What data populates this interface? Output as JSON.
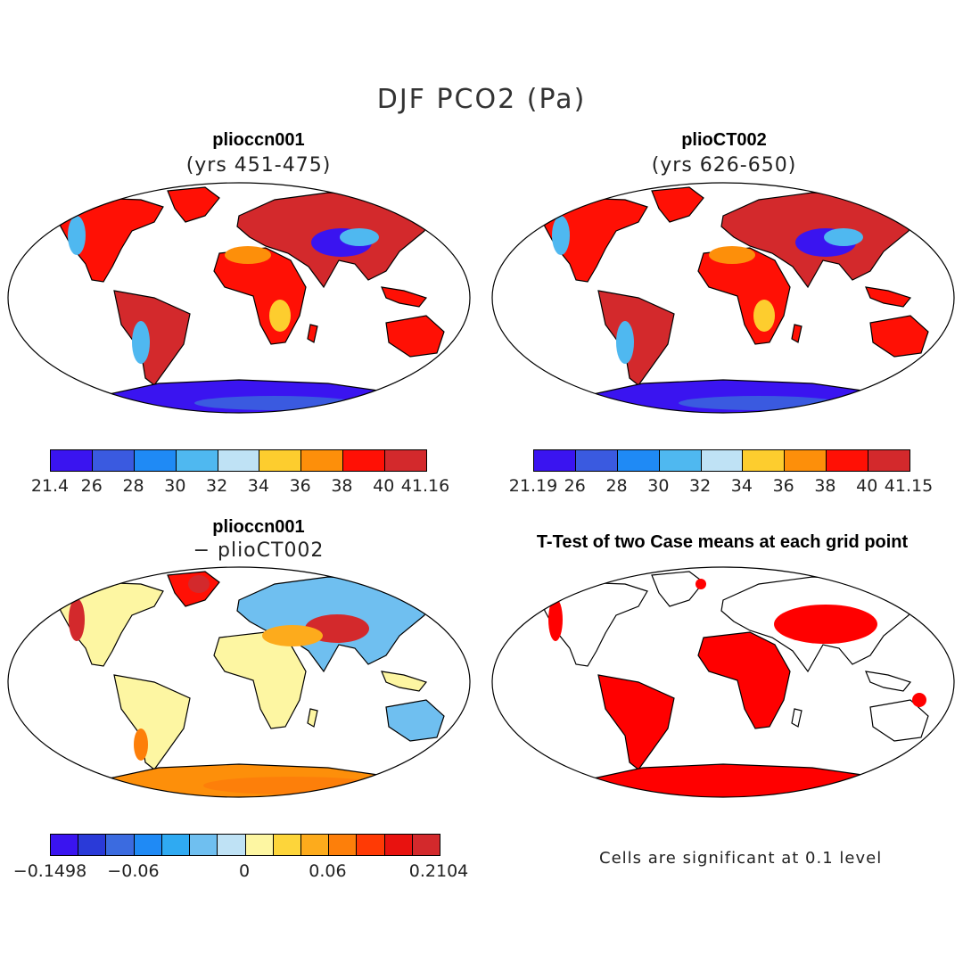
{
  "figure": {
    "title": "DJF PCO2 (Pa)"
  },
  "panels": [
    {
      "title": "plioccn001",
      "subtitle": "(yrs 451-475)"
    },
    {
      "title": "plioCT002",
      "subtitle": "(yrs 626-650)"
    },
    {
      "title": "plioccn001",
      "subtitle": "− plioCT002"
    },
    {
      "title": "T-Test of two Case means at each grid point",
      "subtitle": ""
    }
  ],
  "colorbars": [
    {
      "colors": [
        "#3a14f0",
        "#3a5ae0",
        "#1f8af5",
        "#4fb8f0",
        "#bfe2f5",
        "#fdcd2e",
        "#fd8f0a",
        "#ff1005",
        "#d3292c"
      ],
      "labels": [
        "21.4",
        "26",
        "28",
        "30",
        "32",
        "34",
        "36",
        "38",
        "40",
        "41.16"
      ]
    },
    {
      "colors": [
        "#3a14f0",
        "#3a5ae0",
        "#1f8af5",
        "#4fb8f0",
        "#bfe2f5",
        "#fdcd2e",
        "#fd8f0a",
        "#ff1005",
        "#d3292c"
      ],
      "labels": [
        "21.19",
        "26",
        "28",
        "30",
        "32",
        "34",
        "36",
        "38",
        "40",
        "41.15"
      ]
    },
    {
      "colors": [
        "#3a14f0",
        "#2a3ad8",
        "#3b6be0",
        "#1f8af5",
        "#2faaf2",
        "#6fbff0",
        "#bfe2f5",
        "#fdf6a2",
        "#fdd53a",
        "#fdab1c",
        "#fd7f0a",
        "#ff3a05",
        "#e8120f",
        "#d3292c"
      ],
      "labels": [
        "−0.1498",
        "−0.06",
        "0",
        "0.06",
        "0.2104"
      ]
    }
  ],
  "note": "Cells are significant at 0.1 level",
  "map_colors": {
    "ocean": "#ffffff",
    "coast": "#000000",
    "land_high": "#d3292c",
    "land_mid": "#ff1005",
    "land_dry": "#fd8f0a",
    "land_low_blue": "#3a14f0",
    "diff_pale": "#fdf6a2",
    "diff_blue": "#6fbff0",
    "sig_red": "#ff0000"
  }
}
